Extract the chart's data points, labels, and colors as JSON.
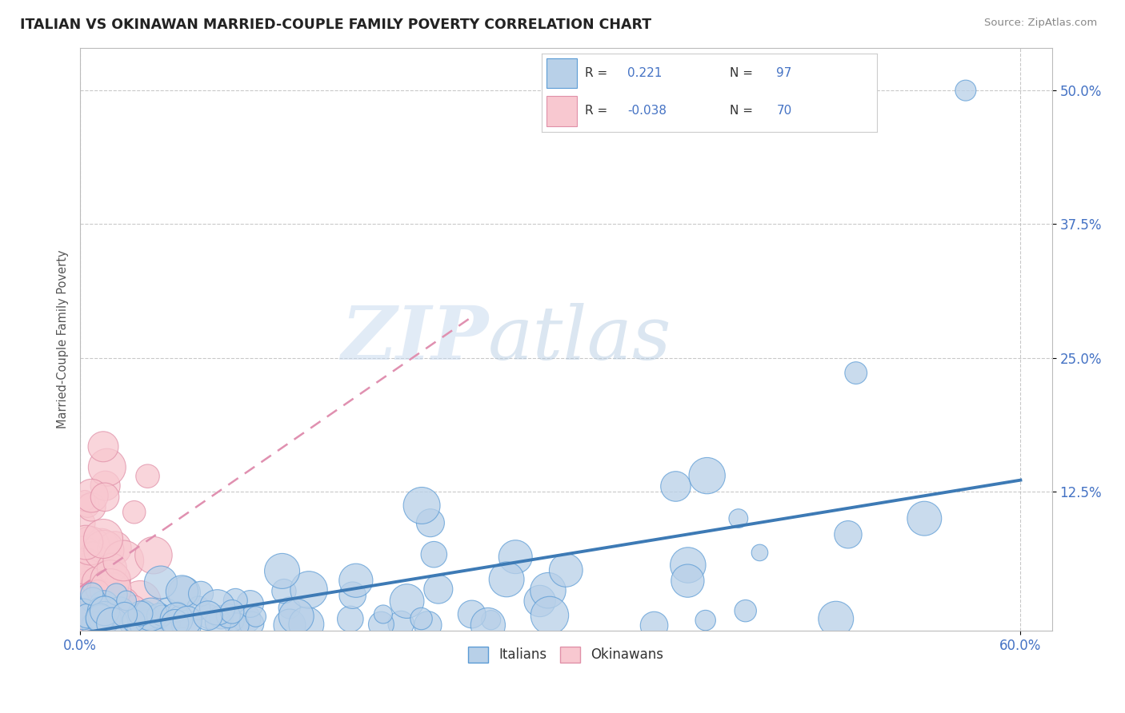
{
  "title": "ITALIAN VS OKINAWAN MARRIED-COUPLE FAMILY POVERTY CORRELATION CHART",
  "source": "Source: ZipAtlas.com",
  "ylabel": "Married-Couple Family Poverty",
  "xlim": [
    0.0,
    0.62
  ],
  "ylim": [
    -0.005,
    0.54
  ],
  "xticks": [
    0.0,
    0.6
  ],
  "xticklabels": [
    "0.0%",
    "60.0%"
  ],
  "ytick_positions": [
    0.125,
    0.25,
    0.375,
    0.5
  ],
  "ytick_labels": [
    "12.5%",
    "25.0%",
    "37.5%",
    "50.0%"
  ],
  "italian_R": 0.221,
  "italian_N": 97,
  "okinawan_R": -0.038,
  "okinawan_N": 70,
  "blue_fill": "#b8d0e8",
  "blue_edge": "#5b9bd5",
  "pink_fill": "#f8c8d0",
  "pink_edge": "#e090a8",
  "legend_label_italian": "Italians",
  "legend_label_okinawan": "Okinawans",
  "watermark_zip": "ZIP",
  "watermark_atlas": "atlas",
  "background_color": "#ffffff",
  "grid_color": "#bbbbbb",
  "title_color": "#222222",
  "axis_label_color": "#555555",
  "tick_label_color": "#4472c4",
  "source_color": "#888888",
  "reg_line_blue": "#3d7ab5",
  "reg_line_pink": "#e090b0"
}
